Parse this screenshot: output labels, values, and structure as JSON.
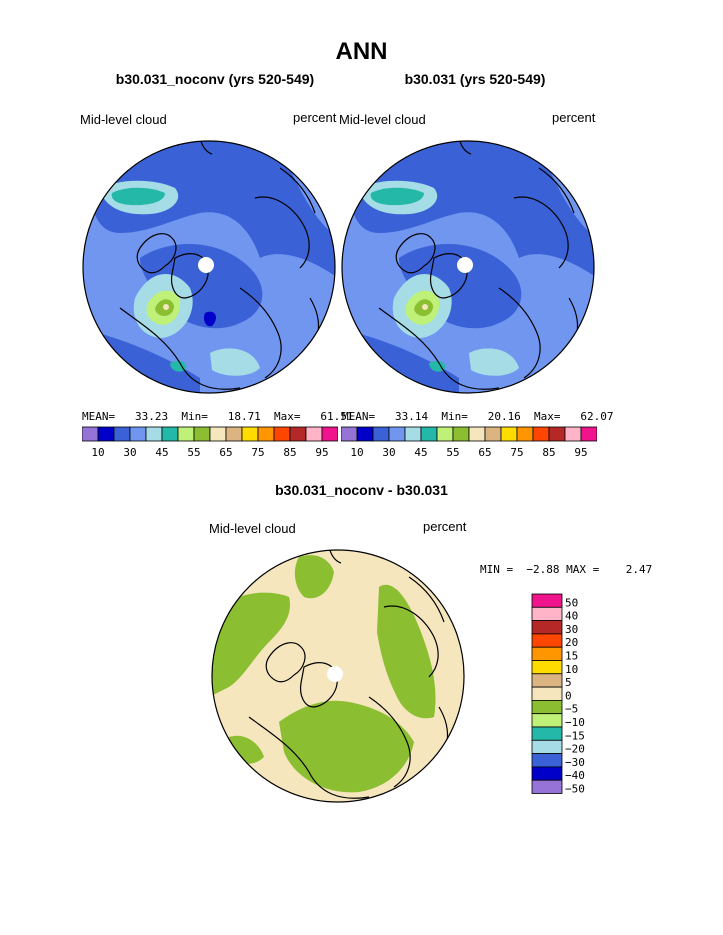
{
  "figure": {
    "title": "ANN",
    "diff_title": "b30.031_noconv - b30.031"
  },
  "palette": {
    "colors": [
      "#9673d6",
      "#0000c8",
      "#3a62d6",
      "#7096f0",
      "#a6dce6",
      "#24b8a8",
      "#bff078",
      "#8cbe32",
      "#f5e6be",
      "#dcb482",
      "#ffdc00",
      "#ff9600",
      "#ff4600",
      "#b42828",
      "#ffb4c8",
      "#f0148c"
    ],
    "labels": [
      "10",
      "30",
      "45",
      "55",
      "65",
      "75",
      "85",
      "95"
    ],
    "ocean_blue": "#7096f0",
    "arctic_blue": "#3a62d6"
  },
  "charts": [
    {
      "case": "b30.031_noconv (yrs 520-549)",
      "field": "Mid-level cloud",
      "units": "percent",
      "stats": "MEAN=   33.23  Min=   18.71  Max=   61.51"
    },
    {
      "case": "b30.031 (yrs 520-549)",
      "field": "Mid-level cloud",
      "units": "percent",
      "stats": "MEAN=   33.14  Min=   20.16  Max=   62.07"
    }
  ],
  "diff": {
    "field": "Mid-level cloud",
    "units": "percent",
    "minmax": "MIN =  −2.88 MAX =    2.47",
    "colors": [
      "#f0148c",
      "#ffb4c8",
      "#b42828",
      "#ff4600",
      "#ff9600",
      "#ffdc00",
      "#dcb482",
      "#f5e6be",
      "#8cbe32",
      "#bff078",
      "#24b8a8",
      "#a6dce6",
      "#3a62d6",
      "#0000c8",
      "#9673d6"
    ],
    "labels": [
      "50",
      "40",
      "30",
      "20",
      "15",
      "10",
      "5",
      "0",
      "−5",
      "−10",
      "−15",
      "−20",
      "−30",
      "−40",
      "−50"
    ]
  },
  "chart_data": [
    {
      "type": "heatmap",
      "title": "b30.031_noconv (yrs 520-549)",
      "variable": "Mid-level cloud",
      "units": "percent",
      "projection": "north polar stereographic",
      "mean": 33.23,
      "min": 18.71,
      "max": 61.51,
      "colorbar_labels": [
        10,
        30,
        45,
        55,
        65,
        75,
        85,
        95
      ]
    },
    {
      "type": "heatmap",
      "title": "b30.031 (yrs 520-549)",
      "variable": "Mid-level cloud",
      "units": "percent",
      "projection": "north polar stereographic",
      "mean": 33.14,
      "min": 20.16,
      "max": 62.07,
      "colorbar_labels": [
        10,
        30,
        45,
        55,
        65,
        75,
        85,
        95
      ]
    },
    {
      "type": "heatmap",
      "title": "b30.031_noconv - b30.031",
      "variable": "Mid-level cloud",
      "units": "percent",
      "projection": "north polar stereographic",
      "min": -2.88,
      "max": 2.47,
      "colorbar_labels": [
        50,
        40,
        30,
        20,
        15,
        10,
        5,
        0,
        -5,
        -10,
        -15,
        -20,
        -30,
        -40,
        -50
      ]
    }
  ]
}
